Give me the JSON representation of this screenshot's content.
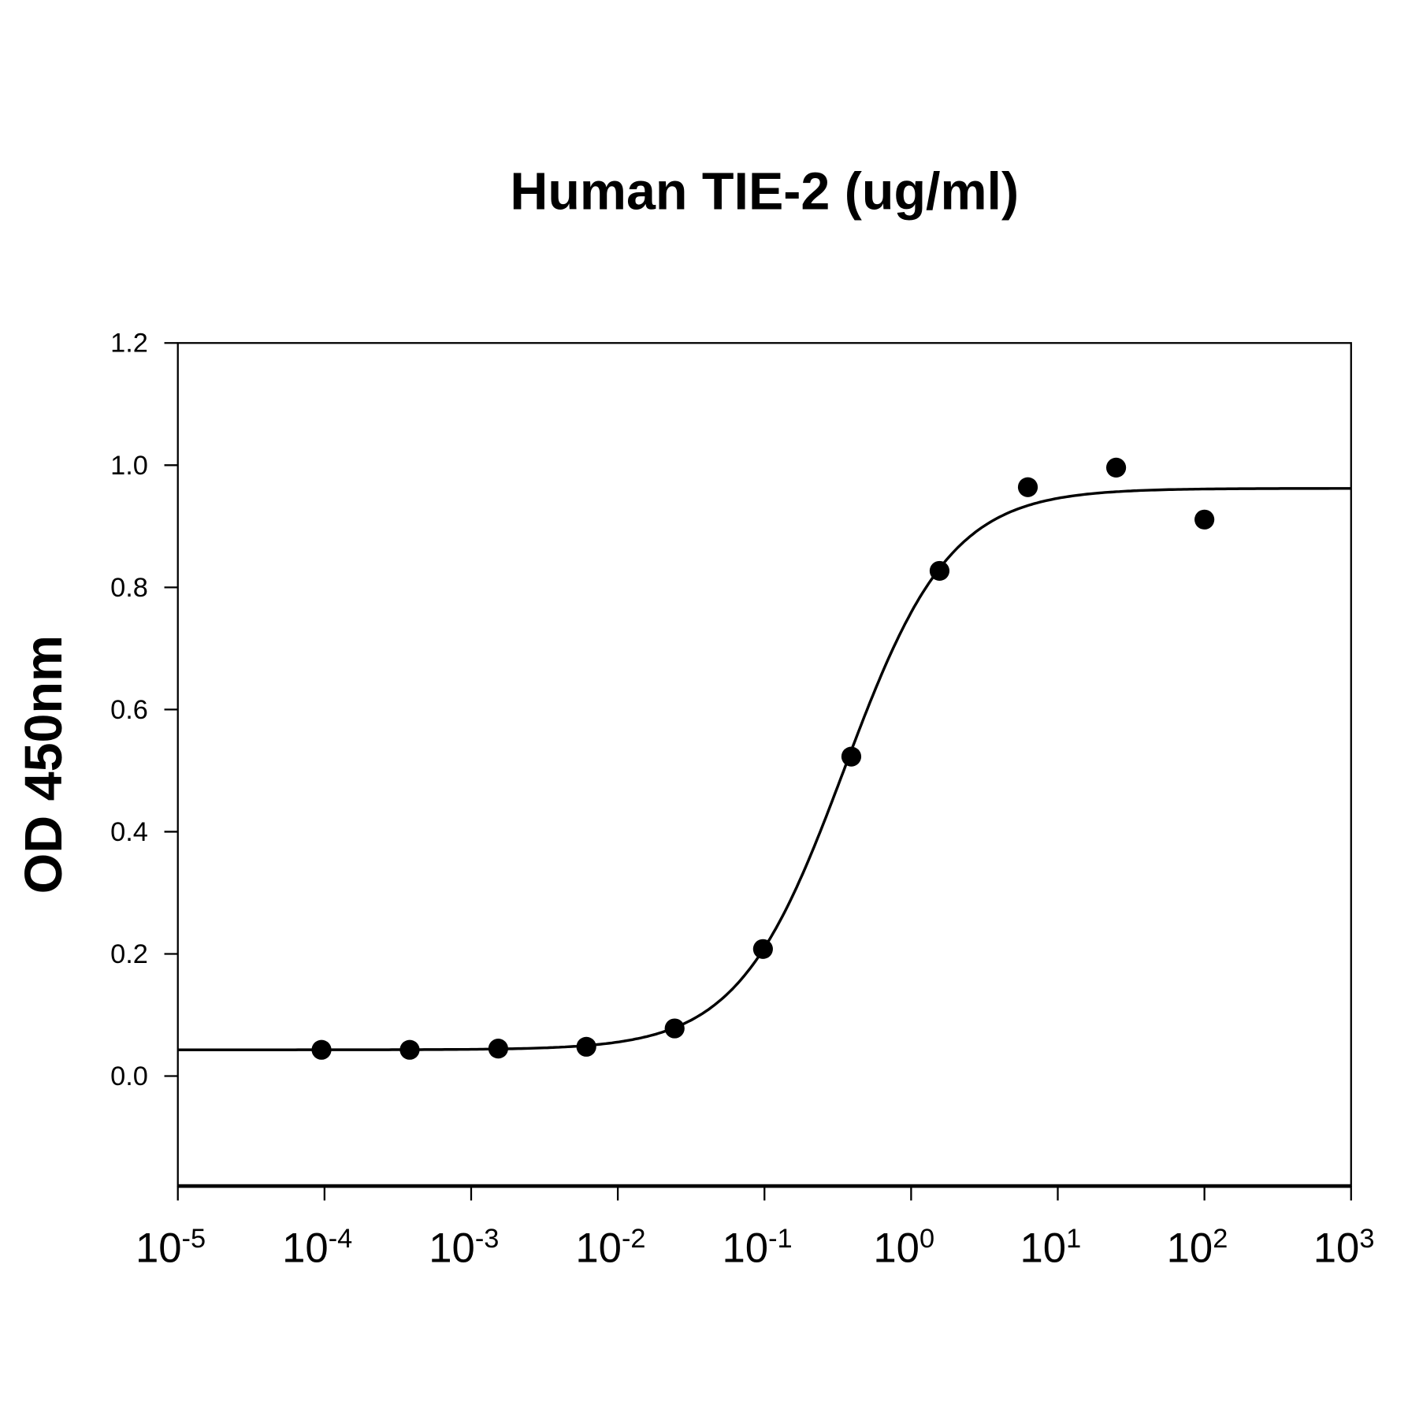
{
  "chart_data": {
    "type": "scatter",
    "title": "Human TIE-2 (ug/ml)",
    "xlabel": "",
    "ylabel": "OD 450nm",
    "x_scale": "log",
    "xlim": [
      1e-05,
      1000
    ],
    "ylim": [
      -0.18,
      1.2
    ],
    "grid": false,
    "x_ticks": [
      -5,
      -4,
      -3,
      -2,
      -1,
      0,
      1,
      2,
      3
    ],
    "x_tick_base": "10",
    "y_ticks": [
      "0.0",
      "0.2",
      "0.4",
      "0.6",
      "0.8",
      "1.0",
      "1.2"
    ],
    "points": {
      "x": [
        9.54e-05,
        0.000381,
        0.00153,
        0.0061,
        0.0244,
        0.0977,
        0.391,
        1.5625,
        6.25,
        25,
        100
      ],
      "y": [
        0.043,
        0.043,
        0.045,
        0.048,
        0.078,
        0.208,
        0.523,
        0.827,
        0.964,
        0.996,
        0.911
      ]
    },
    "fit_curve": {
      "model": "4PL",
      "bottom": 0.043,
      "top": 0.962,
      "ec50": 0.35,
      "hill": 1.2
    },
    "marker_color": "#000000",
    "line_color": "#000000"
  }
}
